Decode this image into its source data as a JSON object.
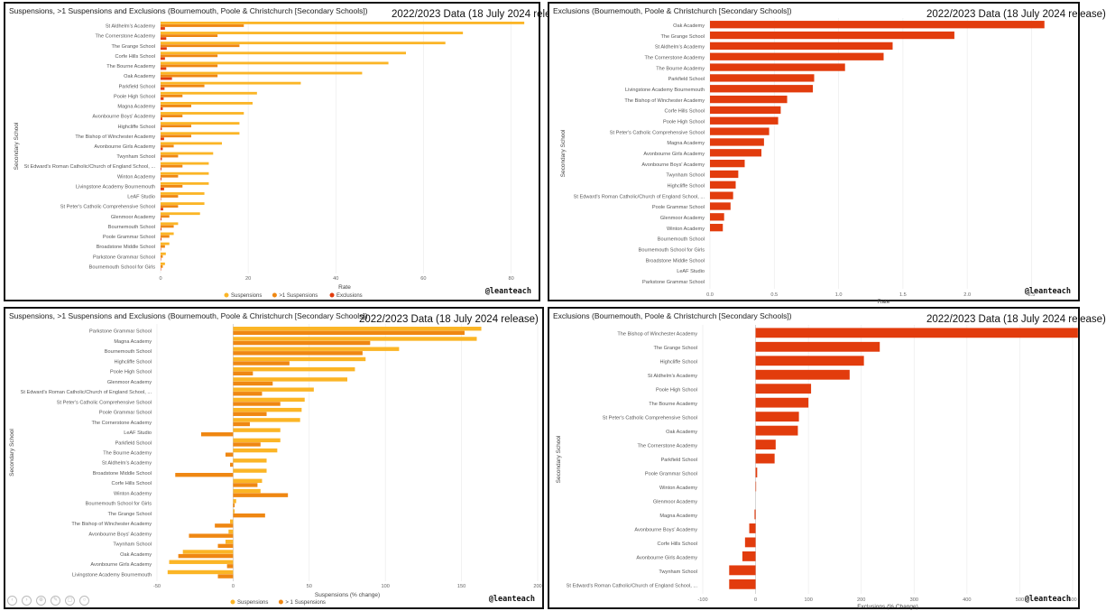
{
  "panels": [
    {
      "title": "Suspensions, >1 Suspensions and Exclusions (Bournemouth, Poole & Christchurch [Secondary Schools])",
      "stamp": "2022/2023 Data (18 July 2024 release)",
      "credit": "@leanteach"
    },
    {
      "title": "Exclusions (Bournemouth, Poole & Christchurch [Secondary Schools])",
      "stamp": "2022/2023 Data (18 July 2024 release)",
      "credit": "@leanteach"
    },
    {
      "title": "Suspensions, >1 Suspensions and Exclusions (Bournemouth, Poole & Christchurch [Secondary Schools])",
      "stamp": "2022/2023 Data (18 July 2024 release)",
      "credit": "@leanteach"
    },
    {
      "title": "Exclusions (Bournemouth, Poole & Christchurch [Secondary Schools])",
      "stamp": "2022/2023 Data (18 July 2024 release)",
      "credit": "@leanteach"
    }
  ],
  "colors": {
    "suspensions": "#fbb526",
    "multi": "#ef8712",
    "exclusions": "#e23c0d"
  },
  "chart_data": [
    {
      "type": "bar",
      "orientation": "horizontal",
      "xlabel": "Rate",
      "ylabel": "Secondary School",
      "xlim": [
        0,
        84
      ],
      "xticks": [
        0,
        20,
        40,
        60,
        80
      ],
      "categories": [
        "St Aldhelm's Academy",
        "The Cornerstone Academy",
        "The Grange School",
        "Corfe Hills School",
        "The Bourne Academy",
        "Oak Academy",
        "Parkfield School",
        "Poole High School",
        "Magna Academy",
        "Avonbourne Boys' Academy",
        "Highcliffe School",
        "The Bishop of Winchester Academy",
        "Avonbourne Girls Academy",
        "Twynham School",
        "St Edward's Roman Catholic/Church of England School, ...",
        "Winton Academy",
        "Livingstone Academy Bournemouth",
        "LeAF Studio",
        "St Peter's Catholic Comprehensive School",
        "Glenmoor Academy",
        "Bournemouth School",
        "Poole Grammar School",
        "Broadstone Middle School",
        "Parkstone Grammar School",
        "Bournemouth School for Girls"
      ],
      "series": [
        {
          "name": "Suspensions",
          "values": [
            83,
            69,
            65,
            56,
            52,
            46,
            32,
            22,
            21,
            19,
            18,
            18,
            14,
            12,
            11,
            11,
            11,
            10,
            10,
            9,
            4,
            3,
            2,
            1.2,
            1
          ]
        },
        {
          "name": ">1 Suspensions",
          "values": [
            19,
            13,
            18,
            13,
            13,
            13,
            10,
            5,
            7,
            5,
            7,
            7,
            3,
            4,
            5,
            4,
            5,
            4,
            4,
            2,
            3,
            2,
            1,
            0.5,
            0.5
          ]
        },
        {
          "name": "Exclusions",
          "values": [
            1,
            1.3,
            1.4,
            1,
            1.3,
            2.6,
            0.9,
            0.7,
            0.5,
            0.4,
            0.3,
            0.8,
            0.5,
            0.3,
            0.2,
            0.2,
            0.8,
            0.1,
            0.6,
            0.2,
            0.2,
            0.2,
            0.1,
            0.1,
            0.1
          ]
        }
      ]
    },
    {
      "type": "bar",
      "orientation": "horizontal",
      "xlabel": "Rate",
      "ylabel": "Secondary School",
      "xlim": [
        0,
        2.7
      ],
      "xticks": [
        0.0,
        0.5,
        1.0,
        1.5,
        2.0,
        2.5
      ],
      "xtick_labels": [
        "0.0",
        "0.5",
        "1.0",
        "1.5",
        "2.0",
        "2.5"
      ],
      "categories": [
        "Oak Academy",
        "The Grange School",
        "St Aldhelm's Academy",
        "The Cornerstone Academy",
        "The Bourne Academy",
        "Parkfield School",
        "Livingstone Academy Bournemouth",
        "The Bishop of Winchester Academy",
        "Corfe Hills School",
        "Poole High School",
        "St Peter's Catholic Comprehensive School",
        "Magna Academy",
        "Avonbourne Girls Academy",
        "Avonbourne Boys' Academy",
        "Twynham School",
        "Highcliffe School",
        "St Edward's Roman Catholic/Church of England School, ...",
        "Poole Grammar School",
        "Glenmoor Academy",
        "Winton Academy",
        "Bournemouth School",
        "Bournemouth School for Girls",
        "Broadstone Middle School",
        "LeAF Studio",
        "Parkstone Grammar School"
      ],
      "series": [
        {
          "name": "Exclusions",
          "values": [
            2.6,
            1.9,
            1.42,
            1.35,
            1.05,
            0.81,
            0.8,
            0.6,
            0.55,
            0.53,
            0.46,
            0.42,
            0.4,
            0.27,
            0.22,
            0.2,
            0.18,
            0.16,
            0.11,
            0.1,
            0,
            0,
            0,
            0,
            0
          ]
        }
      ]
    },
    {
      "type": "bar",
      "orientation": "horizontal",
      "xlabel": "Suspensions (% change)",
      "ylabel": "Secondary School",
      "xlim": [
        -50,
        200
      ],
      "xticks": [
        -50,
        0,
        50,
        100,
        150,
        200
      ],
      "categories": [
        "Parkstone Grammar School",
        "Magna Academy",
        "Bournemouth School",
        "Highcliffe School",
        "Poole High School",
        "Glenmoor Academy",
        "St Edward's Roman Catholic/Church of England School, ...",
        "St Peter's Catholic Comprehensive School",
        "Poole Grammar School",
        "The Cornerstone Academy",
        "LeAF Studio",
        "Parkfield School",
        "The Bourne Academy",
        "St Aldhelm's Academy",
        "Broadstone Middle School",
        "Corfe Hills School",
        "Winton Academy",
        "Bournemouth School for Girls",
        "The Grange School",
        "The Bishop of Winchester Academy",
        "Avonbourne Boys' Academy",
        "Twynham School",
        "Oak Academy",
        "Avonbourne Girls Academy",
        "Livingstone Academy Bournemouth"
      ],
      "series": [
        {
          "name": "Suspensions",
          "values": [
            163,
            160,
            109,
            87,
            80,
            75,
            53,
            47,
            45,
            44,
            31,
            31,
            29,
            22,
            22,
            19,
            18,
            2,
            1,
            -2,
            -3,
            -5,
            -33,
            -42,
            -43
          ]
        },
        {
          "name": "> 1 Suspensions",
          "values": [
            152,
            90,
            85,
            37,
            13,
            26,
            19,
            31,
            22,
            11,
            -21,
            18,
            -5,
            -2,
            -38,
            16,
            36,
            1,
            21,
            -12,
            -29,
            -10,
            -36,
            -4,
            -10
          ]
        }
      ]
    },
    {
      "type": "bar",
      "orientation": "horizontal",
      "xlabel": "Exclusions (% Change)",
      "ylabel": "Secondary School",
      "xlim": [
        -100,
        600
      ],
      "xticks": [
        -100,
        0,
        100,
        200,
        300,
        400,
        500,
        600
      ],
      "categories": [
        "The Bishop of Winchester Academy",
        "The Grange School",
        "Highcliffe School",
        "St Aldhelm's Academy",
        "Poole High School",
        "The Bourne Academy",
        "St Peter's Catholic Comprehensive School",
        "Oak Academy",
        "The Cornerstone Academy",
        "Parkfield School",
        "Poole Grammar School",
        "Winton Academy",
        "Glenmoor Academy",
        "Magna Academy",
        "Avonbourne Boys' Academy",
        "Corfe Hills School",
        "Avonbourne Girls Academy",
        "Twynham School",
        "St Edward's Roman Catholic/Church of England School, ..."
      ],
      "series": [
        {
          "name": "Exclusions",
          "values": [
            610,
            235,
            205,
            178,
            105,
            100,
            82,
            80,
            38,
            36,
            3,
            1,
            0,
            -2,
            -12,
            -20,
            -25,
            -50,
            -50
          ]
        }
      ]
    }
  ]
}
